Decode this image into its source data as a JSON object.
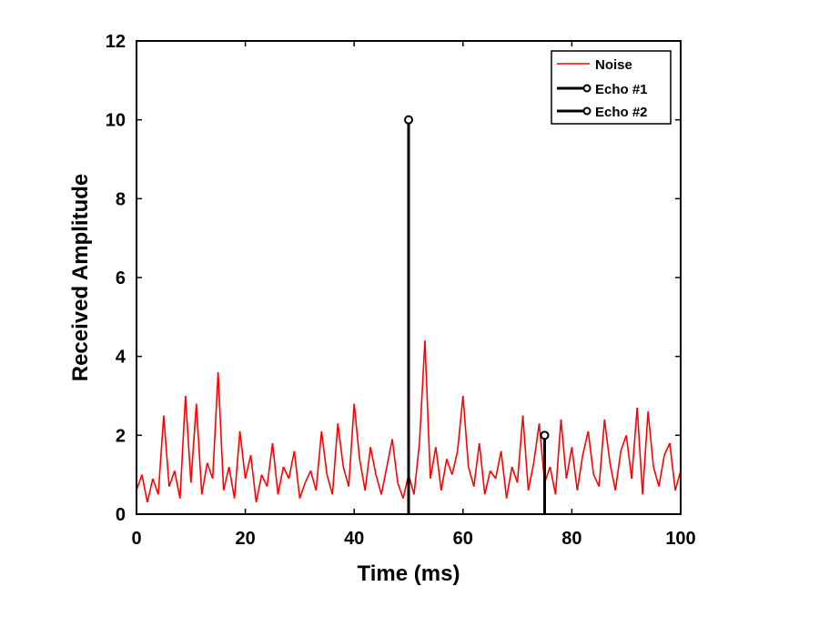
{
  "chart_data": {
    "type": "line",
    "title": "",
    "xlabel": "Time (ms)",
    "ylabel": "Received Amplitude",
    "xlim": [
      0,
      100
    ],
    "ylim": [
      0,
      12
    ],
    "xticks": [
      0,
      20,
      40,
      60,
      80,
      100
    ],
    "yticks": [
      0,
      2,
      4,
      6,
      8,
      10,
      12
    ],
    "xtick_labels": [
      "0",
      "20",
      "40",
      "60",
      "80",
      "100"
    ],
    "ytick_labels": [
      "0",
      "2",
      "4",
      "6",
      "8",
      "10",
      "12"
    ],
    "grid": false,
    "legend": {
      "placement": "top-right",
      "entries": [
        "Noise",
        "Echo #1",
        "Echo #2"
      ]
    },
    "series": [
      {
        "name": "Noise",
        "style": "line",
        "color": "#ff0000",
        "x": [
          0,
          1,
          2,
          3,
          4,
          5,
          6,
          7,
          8,
          9,
          10,
          11,
          12,
          13,
          14,
          15,
          16,
          17,
          18,
          19,
          20,
          21,
          22,
          23,
          24,
          25,
          26,
          27,
          28,
          29,
          30,
          31,
          32,
          33,
          34,
          35,
          36,
          37,
          38,
          39,
          40,
          41,
          42,
          43,
          44,
          45,
          46,
          47,
          48,
          49,
          50,
          51,
          52,
          53,
          54,
          55,
          56,
          57,
          58,
          59,
          60,
          61,
          62,
          63,
          64,
          65,
          66,
          67,
          68,
          69,
          70,
          71,
          72,
          73,
          74,
          75,
          76,
          77,
          78,
          79,
          80,
          81,
          82,
          83,
          84,
          85,
          86,
          87,
          88,
          89,
          90,
          91,
          92,
          93,
          94,
          95,
          96,
          97,
          98,
          99,
          100
        ],
        "y": [
          0.6,
          1.0,
          0.3,
          0.9,
          0.5,
          2.5,
          0.7,
          1.1,
          0.4,
          3.0,
          0.8,
          2.8,
          0.5,
          1.3,
          0.9,
          3.6,
          0.6,
          1.2,
          0.4,
          2.1,
          0.9,
          1.5,
          0.3,
          1.0,
          0.7,
          1.8,
          0.5,
          1.2,
          0.9,
          1.6,
          0.4,
          0.8,
          1.1,
          0.6,
          2.1,
          1.0,
          0.5,
          2.3,
          1.2,
          0.7,
          2.8,
          1.4,
          0.6,
          1.7,
          1.0,
          0.5,
          1.2,
          1.9,
          0.8,
          0.4,
          1.0,
          0.5,
          1.8,
          4.4,
          0.9,
          1.7,
          0.6,
          1.4,
          1.0,
          1.6,
          3.0,
          1.2,
          0.7,
          1.8,
          0.5,
          1.1,
          0.9,
          1.6,
          0.4,
          1.2,
          0.8,
          2.5,
          0.6,
          1.3,
          2.3,
          0.8,
          1.2,
          0.5,
          2.4,
          0.9,
          1.7,
          0.6,
          1.5,
          2.1,
          1.0,
          0.7,
          2.4,
          1.3,
          0.6,
          1.6,
          2.0,
          0.9,
          2.7,
          0.5,
          2.6,
          1.2,
          0.7,
          1.5,
          1.8,
          0.6,
          1.1
        ]
      },
      {
        "name": "Echo #1",
        "style": "stem",
        "color": "#000000",
        "x": [
          50
        ],
        "y": [
          10
        ]
      },
      {
        "name": "Echo #2",
        "style": "stem",
        "color": "#000000",
        "x": [
          75
        ],
        "y": [
          2
        ]
      }
    ]
  }
}
